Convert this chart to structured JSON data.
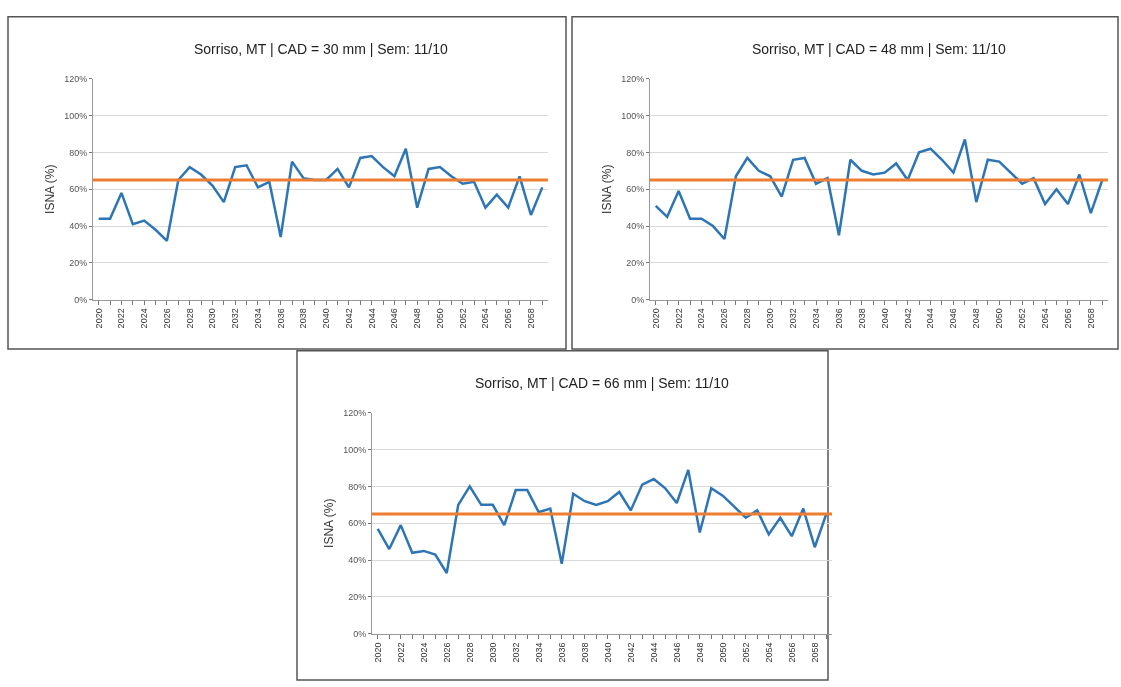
{
  "chart_data": [
    {
      "type": "line",
      "title": "Sorriso, MT | CAD = 30 mm | Sem: 11/10",
      "ylabel": "ISNA (%)",
      "categories": [
        "2020",
        null,
        "2022",
        null,
        "2024",
        null,
        "2026",
        null,
        "2028",
        null,
        "2030",
        null,
        "2032",
        null,
        "2034",
        null,
        "2036",
        null,
        "2038",
        null,
        "2040",
        null,
        "2042",
        null,
        "2044",
        null,
        "2046",
        null,
        "2048",
        null,
        "2050",
        null,
        "2052",
        null,
        "2054",
        null,
        "2056",
        null,
        "2058",
        null
      ],
      "series": [
        {
          "color": "#2e75b6",
          "values": [
            44,
            44,
            58,
            41,
            43,
            38,
            32,
            65,
            72,
            68,
            62,
            53,
            72,
            73,
            61,
            64,
            34,
            75,
            66,
            65,
            65,
            71,
            61,
            77,
            78,
            72,
            67,
            82,
            50,
            71,
            72,
            67,
            63,
            64,
            50,
            57,
            50,
            67,
            46,
            61
          ]
        }
      ],
      "ylim": [
        0,
        120
      ],
      "yticks": [
        {
          "value": 0,
          "label": "0%"
        },
        {
          "value": 20,
          "label": "20%"
        },
        {
          "value": 40,
          "label": "40%"
        },
        {
          "value": 60,
          "label": "60%"
        },
        {
          "value": 80,
          "label": "80%"
        },
        {
          "value": 100,
          "label": "100%"
        },
        {
          "value": 120,
          "label": "120%"
        }
      ],
      "ref_lines": [
        {
          "axis": "y",
          "value": 65,
          "color": "#ed7d31"
        }
      ],
      "grid": "y",
      "marker": "none",
      "line_style": "solid"
    },
    {
      "type": "line",
      "title": "Sorriso, MT | CAD = 48 mm | Sem: 11/10",
      "ylabel": "ISNA (%)",
      "categories": [
        "2020",
        null,
        "2022",
        null,
        "2024",
        null,
        "2026",
        null,
        "2028",
        null,
        "2030",
        null,
        "2032",
        null,
        "2034",
        null,
        "2036",
        null,
        "2038",
        null,
        "2040",
        null,
        "2042",
        null,
        "2044",
        null,
        "2046",
        null,
        "2048",
        null,
        "2050",
        null,
        "2052",
        null,
        "2054",
        null,
        "2056",
        null,
        "2058",
        null
      ],
      "series": [
        {
          "color": "#2e75b6",
          "values": [
            51,
            45,
            59,
            44,
            44,
            40,
            33,
            67,
            77,
            70,
            67,
            56,
            76,
            77,
            63,
            66,
            35,
            76,
            70,
            68,
            69,
            74,
            65,
            80,
            82,
            76,
            69,
            87,
            53,
            76,
            75,
            69,
            63,
            66,
            52,
            60,
            52,
            68,
            47,
            65
          ]
        }
      ],
      "ylim": [
        0,
        120
      ],
      "yticks": [
        {
          "value": 0,
          "label": "0%"
        },
        {
          "value": 20,
          "label": "20%"
        },
        {
          "value": 40,
          "label": "40%"
        },
        {
          "value": 60,
          "label": "60%"
        },
        {
          "value": 80,
          "label": "80%"
        },
        {
          "value": 100,
          "label": "100%"
        },
        {
          "value": 120,
          "label": "120%"
        }
      ],
      "ref_lines": [
        {
          "axis": "y",
          "value": 65,
          "color": "#ed7d31"
        }
      ],
      "grid": "y",
      "marker": "none",
      "line_style": "solid"
    },
    {
      "type": "line",
      "title": "Sorriso, MT | CAD = 66 mm | Sem: 11/10",
      "ylabel": "ISNA (%)",
      "categories": [
        "2020",
        null,
        "2022",
        null,
        "2024",
        null,
        "2026",
        null,
        "2028",
        null,
        "2030",
        null,
        "2032",
        null,
        "2034",
        null,
        "2036",
        null,
        "2038",
        null,
        "2040",
        null,
        "2042",
        null,
        "2044",
        null,
        "2046",
        null,
        "2048",
        null,
        "2050",
        null,
        "2052",
        null,
        "2054",
        null,
        "2056",
        null,
        "2058",
        null
      ],
      "series": [
        {
          "color": "#2e75b6",
          "values": [
            57,
            46,
            59,
            44,
            45,
            43,
            33,
            70,
            80,
            70,
            70,
            59,
            78,
            78,
            66,
            68,
            38,
            76,
            72,
            70,
            72,
            77,
            67,
            81,
            84,
            79,
            71,
            89,
            55,
            79,
            75,
            69,
            63,
            67,
            54,
            63,
            53,
            68,
            47,
            65
          ]
        }
      ],
      "ylim": [
        0,
        120
      ],
      "yticks": [
        {
          "value": 0,
          "label": "0%"
        },
        {
          "value": 20,
          "label": "20%"
        },
        {
          "value": 40,
          "label": "40%"
        },
        {
          "value": 60,
          "label": "60%"
        },
        {
          "value": 80,
          "label": "80%"
        },
        {
          "value": 100,
          "label": "100%"
        },
        {
          "value": 120,
          "label": "120%"
        }
      ],
      "ref_lines": [
        {
          "axis": "y",
          "value": 65,
          "color": "#ed7d31"
        }
      ],
      "grid": "y",
      "marker": "none",
      "line_style": "solid"
    }
  ]
}
